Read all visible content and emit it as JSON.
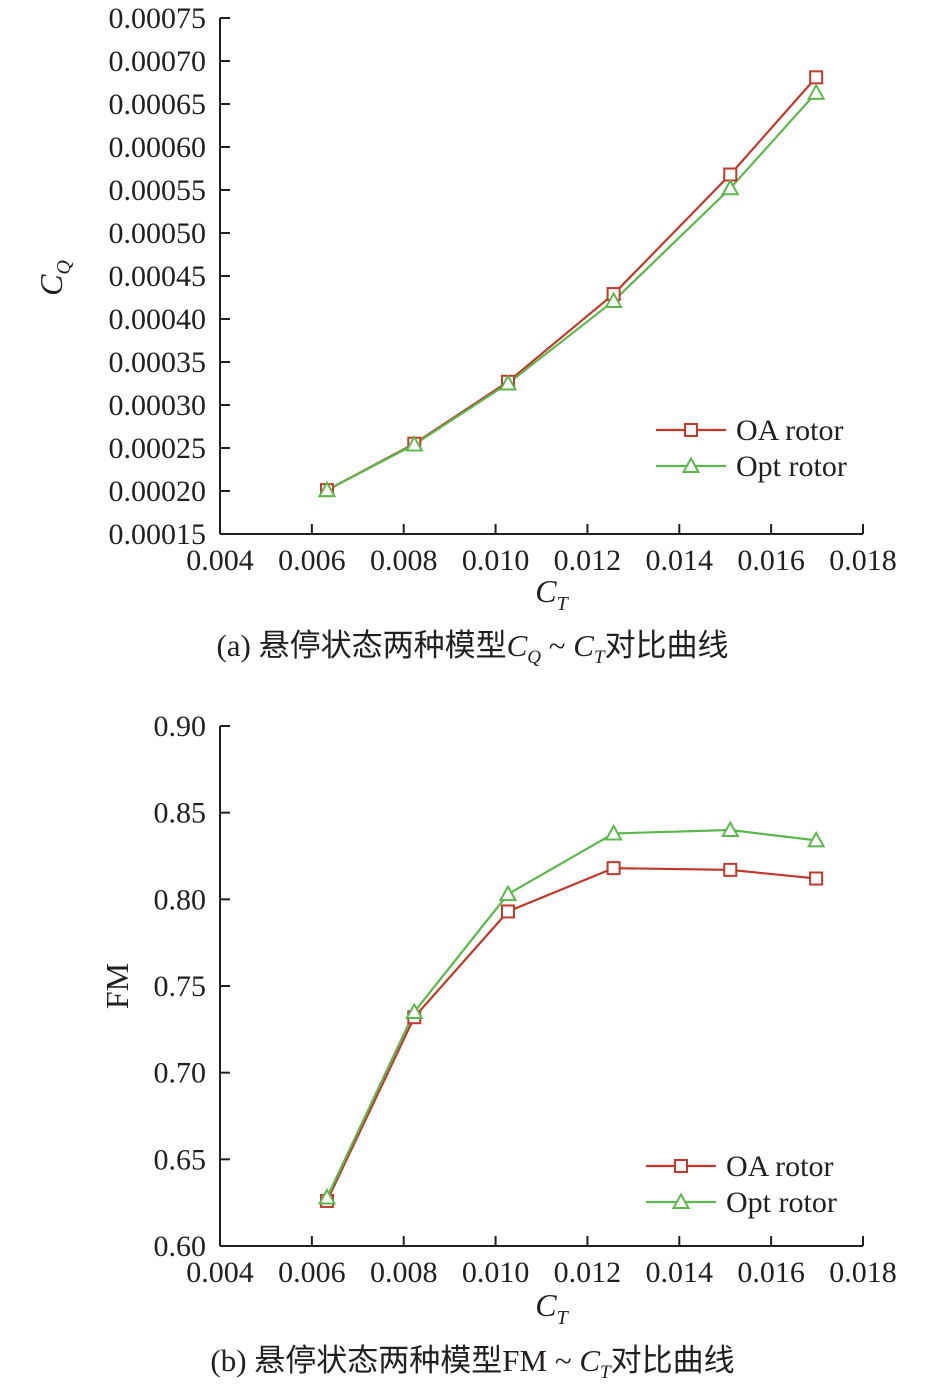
{
  "colors": {
    "oa": "#c0392b",
    "opt": "#5cb84c",
    "axis": "#231f20"
  },
  "chart_data": [
    {
      "id": "a",
      "type": "line",
      "caption": {
        "prefix": "(a) 悬停状态两种模型",
        "c1": "C",
        "c1_sub": "Q",
        "sep": " ~ ",
        "c2": "C",
        "c2_sub": "T",
        "suffix": "对比曲线"
      },
      "xlabel": "C",
      "xlabel_sub": "T",
      "ylabel": "C",
      "ylabel_sub": "Q",
      "xlim": [
        0.004,
        0.018
      ],
      "ylim": [
        0.00015,
        0.00075
      ],
      "xticks": [
        "0.004",
        "0.006",
        "0.008",
        "0.010",
        "0.012",
        "0.014",
        "0.016",
        "0.018"
      ],
      "yticks": [
        "0.00015",
        "0.00020",
        "0.00025",
        "0.00030",
        "0.00035",
        "0.00040",
        "0.00045",
        "0.00050",
        "0.00055",
        "0.00060",
        "0.00065",
        "0.00070",
        "0.00075"
      ],
      "legend_position": "bottom-right",
      "grid": false,
      "series": [
        {
          "name": "OA rotor",
          "marker": "square",
          "x": [
            0.00633,
            0.00823,
            0.01027,
            0.01257,
            0.01511,
            0.01698
          ],
          "y": [
            0.000201,
            0.000255,
            0.000327,
            0.000429,
            0.000568,
            0.000681
          ]
        },
        {
          "name": "Opt rotor",
          "marker": "triangle",
          "x": [
            0.00633,
            0.00823,
            0.01027,
            0.01257,
            0.01511,
            0.01698
          ],
          "y": [
            0.000201,
            0.000254,
            0.000325,
            0.000421,
            0.000552,
            0.000663
          ]
        }
      ]
    },
    {
      "id": "b",
      "type": "line",
      "caption": {
        "prefix": "(b) 悬停状态两种模型FM",
        "sep": " ~ ",
        "c2": "C",
        "c2_sub": "T",
        "suffix": "对比曲线"
      },
      "xlabel": "C",
      "xlabel_sub": "T",
      "ylabel": "FM",
      "xlim": [
        0.004,
        0.018
      ],
      "ylim": [
        0.6,
        0.9
      ],
      "xticks": [
        "0.004",
        "0.006",
        "0.008",
        "0.010",
        "0.012",
        "0.014",
        "0.016",
        "0.018"
      ],
      "yticks": [
        "0.60",
        "0.65",
        "0.70",
        "0.75",
        "0.80",
        "0.85",
        "0.90"
      ],
      "legend_position": "bottom-right",
      "grid": false,
      "series": [
        {
          "name": "OA rotor",
          "marker": "square",
          "x": [
            0.00633,
            0.00823,
            0.01027,
            0.01257,
            0.01511,
            0.01698
          ],
          "y": [
            0.626,
            0.732,
            0.793,
            0.818,
            0.817,
            0.812
          ]
        },
        {
          "name": "Opt rotor",
          "marker": "triangle",
          "x": [
            0.00633,
            0.00823,
            0.01027,
            0.01257,
            0.01511,
            0.01698
          ],
          "y": [
            0.628,
            0.735,
            0.803,
            0.838,
            0.84,
            0.834
          ]
        }
      ]
    }
  ]
}
